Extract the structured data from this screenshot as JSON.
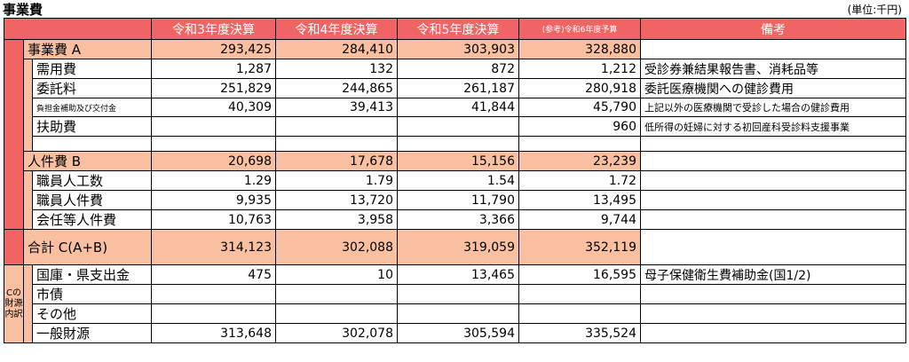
{
  "title": "事業費",
  "unit": "(単位:千円)",
  "headers": {
    "c1": "令和3年度決算",
    "c2": "令和4年度決算",
    "c3": "令和5年度決算",
    "c4": "(参考)令和6年度予算",
    "notes": "備考"
  },
  "rows": {
    "business": {
      "label": "事業費 A",
      "v": [
        "293,425",
        "284,410",
        "303,903",
        "328,880"
      ],
      "note": ""
    },
    "demand": {
      "label": "需用費",
      "v": [
        "1,287",
        "132",
        "872",
        "1,212"
      ],
      "note": "受診券兼結果報告書、消耗品等"
    },
    "commission": {
      "label": "委託料",
      "v": [
        "251,829",
        "244,865",
        "261,187",
        "280,918"
      ],
      "note": "委託医療機関への健診費用"
    },
    "subsidy": {
      "label": "負担金補助及び交付金",
      "v": [
        "40,309",
        "39,413",
        "41,844",
        "45,790"
      ],
      "note": "上記以外の医療機関で受診した場合の健診費用"
    },
    "aid": {
      "label": "扶助費",
      "v": [
        "",
        "",
        "",
        "960"
      ],
      "note": "低所得の妊婦に対する初回産科受診料支援事業"
    },
    "personnel": {
      "label": "人件費 B",
      "v": [
        "20,698",
        "17,678",
        "15,156",
        "23,239"
      ],
      "note": ""
    },
    "staff_count": {
      "label": "職員人工数",
      "v": [
        "1.29",
        "1.79",
        "1.54",
        "1.72"
      ],
      "note": ""
    },
    "staff_cost": {
      "label": "職員人件費",
      "v": [
        "9,935",
        "13,720",
        "11,790",
        "13,495"
      ],
      "note": ""
    },
    "appointed_cost": {
      "label": "会任等人件費",
      "v": [
        "10,763",
        "3,958",
        "3,366",
        "9,744"
      ],
      "note": ""
    },
    "total": {
      "label": "合計 C(A+B)",
      "v": [
        "314,123",
        "302,088",
        "319,059",
        "352,119"
      ],
      "note": ""
    },
    "national": {
      "label": "国庫・県支出金",
      "v": [
        "475",
        "10",
        "13,465",
        "16,595"
      ],
      "note": "母子保健衛生費補助金(国1/2)"
    },
    "bond": {
      "label": "市債",
      "v": [
        "",
        "",
        "",
        ""
      ],
      "note": ""
    },
    "other": {
      "label": "その他",
      "v": [
        "",
        "",
        "",
        ""
      ],
      "note": ""
    },
    "general": {
      "label": "一般財源",
      "v": [
        "313,648",
        "302,078",
        "305,594",
        "335,524"
      ],
      "note": ""
    }
  },
  "side_label": "Cの財源内訳",
  "colors": {
    "header": "#f06464",
    "highlight": "#f8c0a0"
  }
}
